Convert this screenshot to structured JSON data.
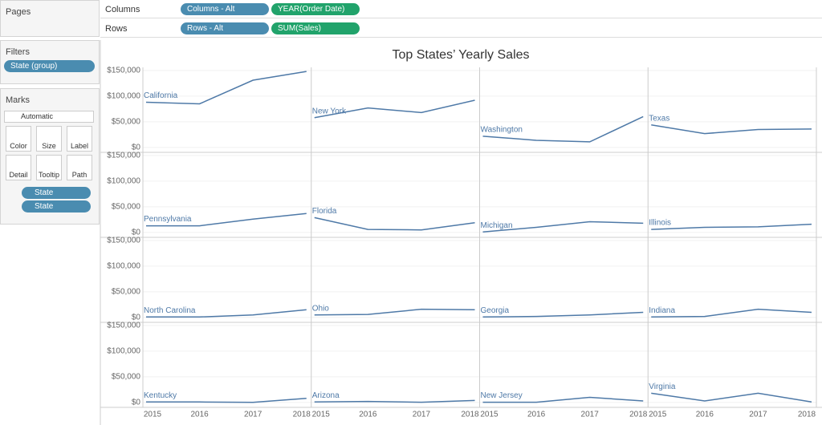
{
  "shelves": {
    "pages": "Pages",
    "columns": {
      "label": "Columns",
      "pills": [
        "Columns - Alt",
        "YEAR(Order Date)"
      ]
    },
    "rows": {
      "label": "Rows",
      "pills": [
        "Rows - Alt",
        "SUM(Sales)"
      ]
    }
  },
  "filters": {
    "title": "Filters",
    "pills": [
      "State (group)"
    ]
  },
  "marks": {
    "title": "Marks",
    "mark_type": "Automatic",
    "buttons": [
      "Color",
      "Size",
      "Label",
      "Detail",
      "Tooltip",
      "Path"
    ],
    "pills": [
      "State",
      "State"
    ]
  },
  "chart_data": {
    "type": "line",
    "title": "Top States’ Yearly Sales",
    "x": [
      2015,
      2016,
      2017,
      2018
    ],
    "xlim": [
      2015,
      2018
    ],
    "xticks": [
      2015,
      2016,
      2017,
      2018
    ],
    "ylim": [
      -9500,
      156000
    ],
    "yticks": [
      {
        "value": 0,
        "label": "$0"
      },
      {
        "value": 50000,
        "label": "$50,000"
      },
      {
        "value": 100000,
        "label": "$100,000"
      },
      {
        "value": 150000,
        "label": "$150,000"
      }
    ],
    "grid": true,
    "color": "#4e79a7",
    "series": [
      {
        "name": "California",
        "values": [
          88000,
          85000,
          131000,
          148000
        ]
      },
      {
        "name": "New York",
        "values": [
          58000,
          77000,
          68000,
          92000
        ]
      },
      {
        "name": "Washington",
        "values": [
          22000,
          14000,
          11000,
          60000
        ]
      },
      {
        "name": "Texas",
        "values": [
          44000,
          27000,
          35000,
          36000
        ]
      },
      {
        "name": "Pennsylvania",
        "values": [
          13000,
          13000,
          26000,
          37000
        ]
      },
      {
        "name": "Florida",
        "values": [
          29000,
          6000,
          5000,
          19000
        ]
      },
      {
        "name": "Michigan",
        "values": [
          1000,
          10000,
          21000,
          18000
        ]
      },
      {
        "name": "Illinois",
        "values": [
          6000,
          10000,
          11000,
          16000
        ]
      },
      {
        "name": "North Carolina",
        "values": [
          1000,
          1000,
          5000,
          15000
        ]
      },
      {
        "name": "Ohio",
        "values": [
          5000,
          6000,
          16000,
          15000
        ]
      },
      {
        "name": "Georgia",
        "values": [
          1000,
          2000,
          5000,
          10000
        ]
      },
      {
        "name": "Indiana",
        "values": [
          1000,
          2000,
          16000,
          10000
        ]
      },
      {
        "name": "Kentucky",
        "values": [
          1000,
          1000,
          200,
          8000
        ]
      },
      {
        "name": "Arizona",
        "values": [
          1000,
          2000,
          500,
          4000
        ]
      },
      {
        "name": "New Jersey",
        "values": [
          500,
          400,
          10000,
          3000
        ]
      },
      {
        "name": "Virginia",
        "values": [
          18000,
          3000,
          18000,
          1000
        ]
      }
    ]
  }
}
